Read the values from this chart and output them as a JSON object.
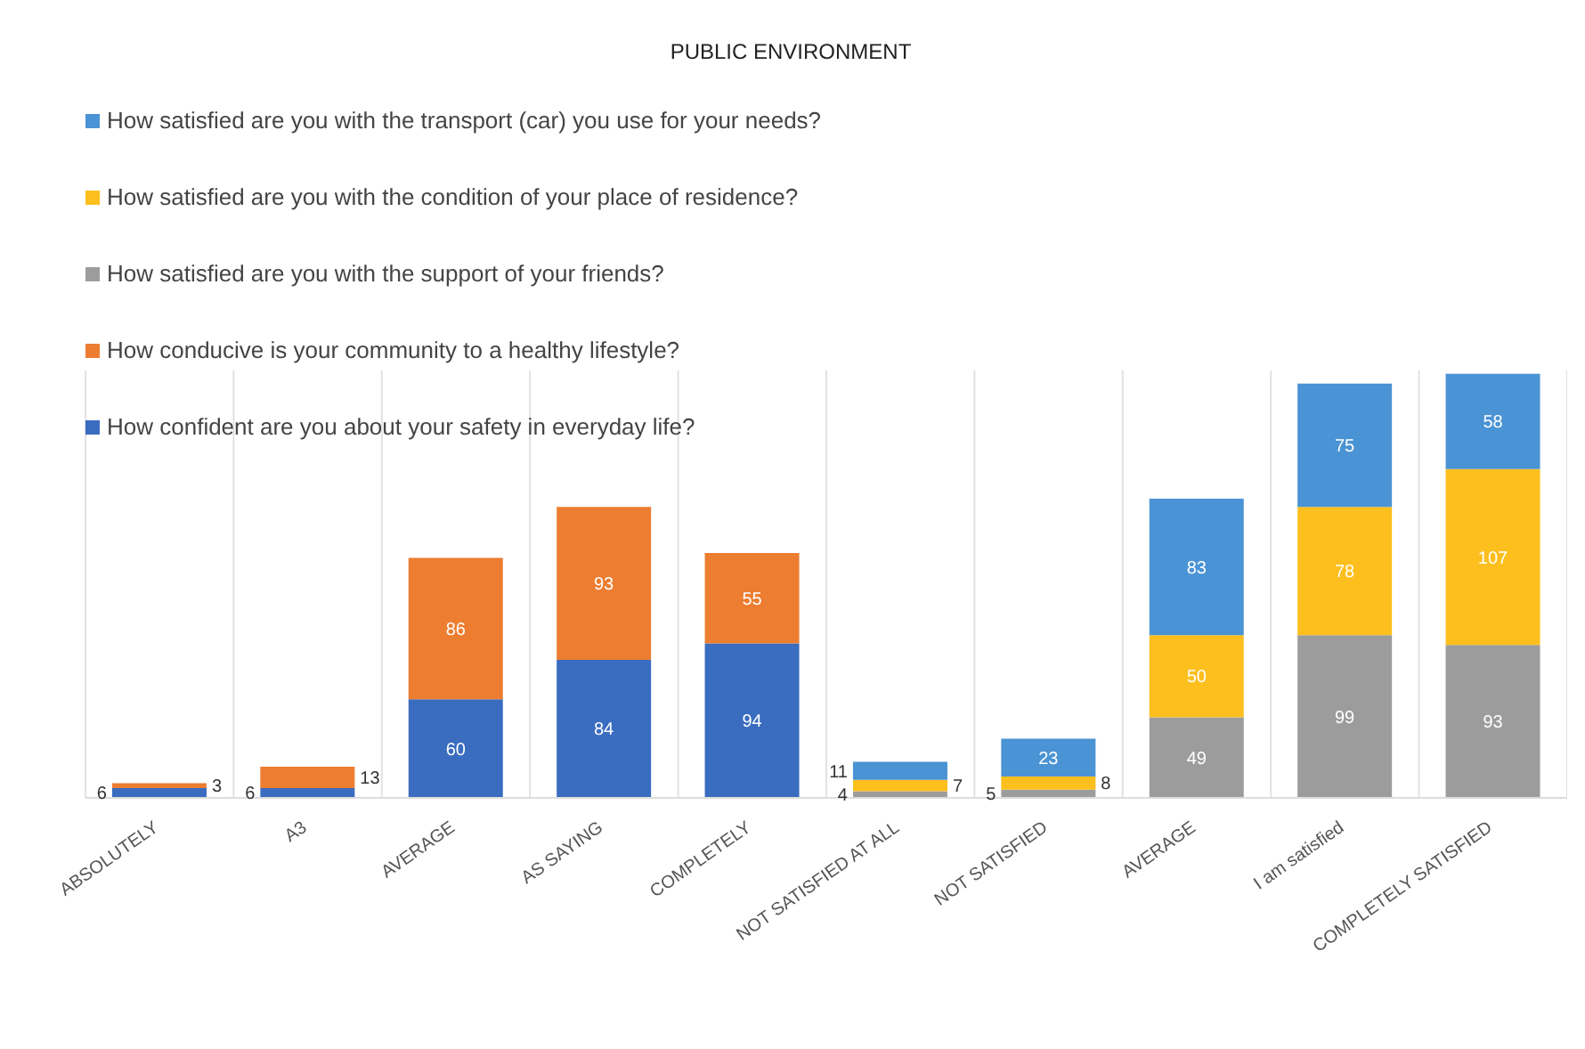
{
  "chart_data": {
    "type": "bar",
    "title": "PUBLIC ENVIRONMENT",
    "stacked": true,
    "data_labels": true,
    "grid": "x",
    "legend": "top left",
    "categories": [
      "ABSOLUTELY",
      "A3",
      "AVERAGE",
      "AS SAYING",
      "COMPLETELY",
      "NOT SATISFIED AT ALL",
      "NOT SATISFIED",
      "AVERAGE",
      "I am satisfied",
      "COMPLETELY SATISFIED"
    ],
    "series": [
      {
        "name": "How confident are you about your safety in everyday life?",
        "color": "#3a6cc0",
        "values": [
          6,
          6,
          60,
          84,
          94,
          null,
          null,
          null,
          null,
          null
        ]
      },
      {
        "name": "How conducive is your community to a healthy lifestyle?",
        "color": "#ed7d31",
        "values": [
          3,
          13,
          86,
          93,
          55,
          null,
          null,
          null,
          null,
          null
        ]
      },
      {
        "name": "How satisfied are you with the support of your friends?",
        "color": "#9c9c9c",
        "values": [
          null,
          null,
          null,
          null,
          null,
          4,
          5,
          49,
          99,
          93
        ]
      },
      {
        "name": "How satisfied are you with the condition of your place of residence?",
        "color": "#fdbf1e",
        "values": [
          null,
          null,
          null,
          null,
          null,
          7,
          8,
          50,
          78,
          107
        ]
      },
      {
        "name": "How satisfied are you with the transport (car) you use for your needs?",
        "color": "#4a93d4",
        "values": [
          null,
          null,
          null,
          null,
          null,
          11,
          23,
          83,
          75,
          58
        ]
      }
    ]
  }
}
